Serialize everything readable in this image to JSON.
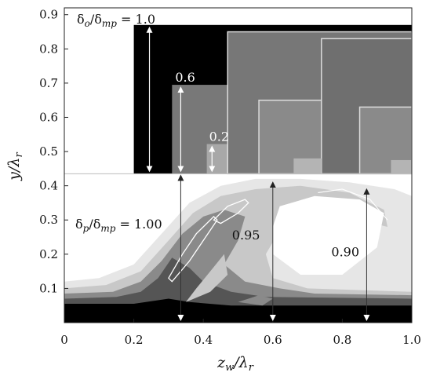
{
  "chart_data": {
    "type": "heatmap",
    "title": "",
    "xlabel": "z_w/λ_r",
    "ylabel": "y/λ_r",
    "xlim": [
      0,
      1.0
    ],
    "ylim": [
      0,
      0.92
    ],
    "x_ticks": [
      "0",
      "0.2",
      "0.4",
      "0.6",
      "0.8",
      "1.0"
    ],
    "x_tick_values": [
      0,
      0.2,
      0.4,
      0.6,
      0.8,
      1.0
    ],
    "y_ticks": [
      "0.1",
      "0.2",
      "0.3",
      "0.4",
      "0.5",
      "0.6",
      "0.7",
      "0.8",
      "0.9"
    ],
    "y_tick_values": [
      0.1,
      0.2,
      0.3,
      0.4,
      0.5,
      0.6,
      0.7,
      0.8,
      0.9
    ],
    "grid": false,
    "top_panel_floor_y": 0.435,
    "nested_boxes": [
      {
        "label": "δ_o/δ_mp = 1.0",
        "x_left": 0.2,
        "x_right": 1.0,
        "y_top": 0.87,
        "arrow_x": 0.245
      },
      {
        "label": "0.6",
        "x_left": 0.31,
        "x_right": 0.47,
        "y_top": 0.695,
        "arrow_x": 0.335
      },
      {
        "label": "0.2",
        "x_left": 0.41,
        "x_right": 0.47,
        "y_top": 0.522,
        "arrow_x": 0.425
      }
    ],
    "shifted_boxes": [
      {
        "x_left": 0.47,
        "x_right": 1.0,
        "y_top": 0.85,
        "fill": "#777777"
      },
      {
        "x_left": 0.56,
        "x_right": 1.0,
        "y_top": 0.65,
        "fill": "#8a8a8a"
      },
      {
        "x_left": 0.74,
        "x_right": 1.0,
        "y_top": 0.83,
        "fill": "#6f6f6f"
      },
      {
        "x_left": 0.85,
        "x_right": 1.0,
        "y_top": 0.63,
        "fill": "#8a8a8a"
      }
    ],
    "lower_labels": [
      {
        "label": "δ_p/δ_mp = 1.00",
        "arrow_x": 0.335,
        "arrow_bottom": 0.0,
        "arrow_top": 0.435
      },
      {
        "label": "0.95",
        "arrow_x": 0.6,
        "arrow_bottom": 0.0,
        "arrow_top": 0.415
      },
      {
        "label": "0.90",
        "arrow_x": 0.87,
        "arrow_bottom": 0.0,
        "arrow_top": 0.395
      }
    ],
    "colors": {
      "black": "#000000",
      "dark_gray": "#555555",
      "mid_gray": "#8a8a8a",
      "light_gray": "#c8c8c8",
      "pale_gray": "#e6e6e6",
      "white": "#ffffff"
    }
  }
}
